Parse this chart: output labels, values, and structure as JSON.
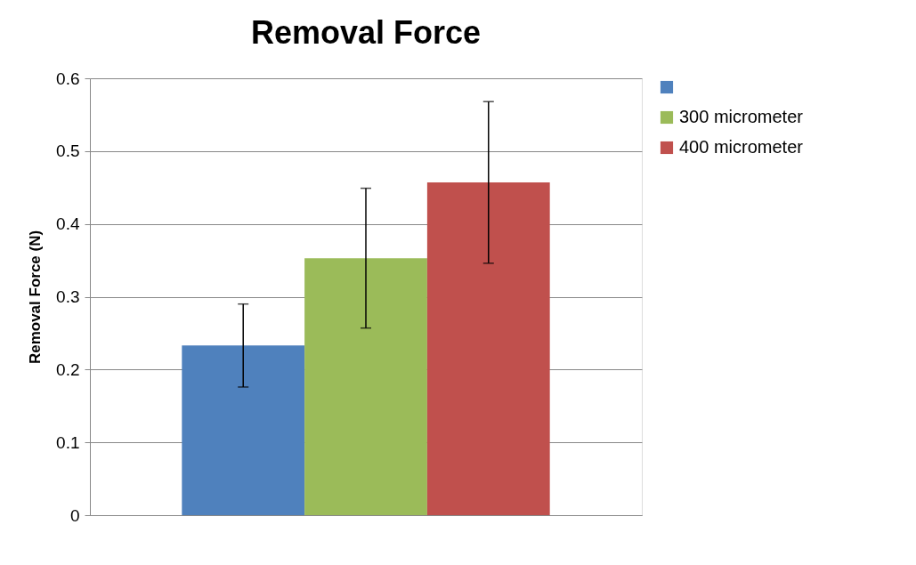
{
  "chart_data": {
    "type": "bar",
    "title": "Removal Force",
    "ylabel": "Removal Force (N)",
    "categories": [
      null
    ],
    "series": [
      {
        "color": "#4f81bd",
        "values": [
          0.233
        ],
        "errors": [
          0.057
        ]
      },
      {
        "name": "300 micrometer",
        "color": "#9bbb59",
        "values": [
          0.353
        ],
        "errors": [
          0.096
        ]
      },
      {
        "name": "400 micrometer",
        "color": "#c0504d",
        "values": [
          0.457
        ],
        "errors": [
          0.111
        ]
      }
    ],
    "ylim": [
      0,
      0.6
    ],
    "yticks": [
      0,
      0.1,
      0.2,
      0.3,
      0.4,
      0.5,
      0.6
    ],
    "grid": "y",
    "legend": "right"
  }
}
